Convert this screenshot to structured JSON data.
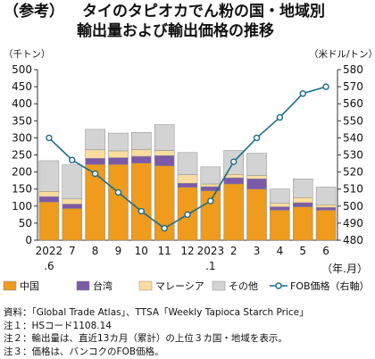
{
  "title": {
    "tag": "（参考）",
    "line1": "タイのタピオカでん粉の国・地域別",
    "line2": "輸出量および輸出価格の推移"
  },
  "chart_data": {
    "type": "bar",
    "stacked": true,
    "categories": [
      "2022",
      "7",
      "8",
      "9",
      "10",
      "11",
      "12",
      "2023",
      "2",
      "3",
      "4",
      "5",
      "6"
    ],
    "category_sublabels": [
      ".6",
      "",
      "",
      "",
      "",
      "",
      "",
      ".1",
      "",
      "",
      "",
      "",
      ""
    ],
    "series": [
      {
        "name": "中国",
        "color": "#ee9b1e",
        "values": [
          112,
          93,
          222,
          222,
          226,
          218,
          155,
          145,
          165,
          150,
          88,
          98,
          88
        ]
      },
      {
        "name": "台湾",
        "color": "#7d5aa8",
        "values": [
          16,
          13,
          18,
          20,
          20,
          30,
          12,
          12,
          18,
          30,
          10,
          12,
          8
        ]
      },
      {
        "name": "マレーシア",
        "color": "#fbdca0",
        "values": [
          15,
          15,
          25,
          20,
          20,
          15,
          25,
          8,
          10,
          10,
          10,
          15,
          8
        ]
      },
      {
        "name": "その他",
        "color": "#d3d3d3",
        "values": [
          90,
          100,
          60,
          52,
          50,
          76,
          65,
          50,
          70,
          65,
          42,
          55,
          52
        ]
      }
    ],
    "line_series": {
      "name": "FOB価格（右軸）",
      "color": "#1a6d8c",
      "values": [
        540,
        527,
        519,
        508,
        497,
        487,
        495,
        503,
        526,
        540,
        552,
        566,
        570
      ]
    },
    "ylabel_left": "（千トン）",
    "ylabel_right": "（米ドル/トン）",
    "xlabel": "（年.月）",
    "ylim_left": [
      0,
      500
    ],
    "yticks_left": [
      0,
      50,
      100,
      150,
      200,
      250,
      300,
      350,
      400,
      450,
      500
    ],
    "ylim_right": [
      480,
      580
    ],
    "yticks_right": [
      480,
      490,
      500,
      510,
      520,
      530,
      540,
      550,
      560,
      570,
      580
    ],
    "legend": [
      "中国",
      "台湾",
      "マレーシア",
      "その他",
      "FOB価格（右軸）"
    ],
    "legend_position": "bottom",
    "grid": false
  },
  "notes": [
    "資料：「Global Trade Atlas」、TTSA「Weekly Tapioca Starch Price」",
    "注１：HSコード1108.14",
    "注２：輸出量は、直近13カ月（累計）の上位３カ国・地域を表示。",
    "注３：価格は、バンコクのFOB価格。"
  ]
}
